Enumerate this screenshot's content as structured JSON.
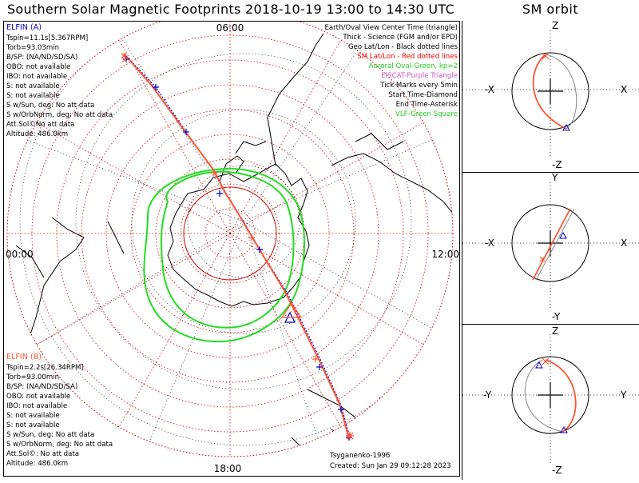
{
  "title": "Southern Solar Magnetic Footprints 2018-10-19 13:00 to 14:30 UTC",
  "sm_title": "SM orbit",
  "time_labels": {
    "top": "06:00",
    "left": "00:00",
    "right": "12:00",
    "bottom": "18:00"
  },
  "satellite_a": {
    "name": "ELFIN (A)",
    "color": "#0000cc",
    "lines": [
      "Tspin=11.1s[5.367RPM]",
      "Torb=93.03min",
      "B/SP: (NA/ND/SD/SA)",
      "OBO: not available",
      "IBO: not available",
      "S: not available",
      "S: not available",
      "S w/Sun, deg: No att data",
      "S w/OrbNorm, deg: No att data",
      "Att.Sol©No att data",
      "Altitude: 486.0km"
    ]
  },
  "satellite_b": {
    "name": "ELFIN (B)",
    "color": "#ff5533",
    "lines": [
      "Tspin=2.2s[26.34RPM]",
      "Torb=93.00min",
      "B/SP: (NA/ND/SD/SA)",
      "OBO: not available",
      "IBO: not available",
      "S: not available",
      "S: not available",
      "S w/Sun, deg: No att data",
      "S w/OrbNorm, deg: No att data",
      "Att.Sol©: No att data",
      "Altitude: 486.0km"
    ]
  },
  "legend": [
    {
      "text": "Earth/Oval View Center Time (triangle)",
      "color": "#000000"
    },
    {
      "text": "Thick - Science (FGM and/or EPD)",
      "color": "#000000"
    },
    {
      "text": "Geo Lat/Lon - Black dotted lines",
      "color": "#000000"
    },
    {
      "text": "SM Lat/Lon - Red dotted lines",
      "color": "#ff0000"
    },
    {
      "text": "Auroral Oval-Green, kp=2",
      "color": "#22cc22"
    },
    {
      "text": "EISCAT-Purple Triangle",
      "color": "#cc55cc"
    },
    {
      "text": "Tick Marks every 5min",
      "color": "#000000"
    },
    {
      "text": "Start Time-Diamond",
      "color": "#000000"
    },
    {
      "text": "End Time-Asterisk",
      "color": "#000000"
    },
    {
      "text": "VLF-Green Square",
      "color": "#22cc22"
    }
  ],
  "credits": {
    "model": "Tsyganenko-1996",
    "created": "Created: Sun Jan 29 09:12:28 2023"
  },
  "sm_panels": [
    {
      "top": "Z",
      "bottom": "-Z",
      "left": "-X",
      "right": "X"
    },
    {
      "top": "Y",
      "bottom": "-Y",
      "left": "-X",
      "right": "X"
    },
    {
      "top": "Z",
      "bottom": "-Z",
      "left": "-Y",
      "right": "Y"
    }
  ],
  "colors": {
    "track": "#ff5533",
    "grid_sm": "#cc0000",
    "grid_geo": "#000000",
    "oval": "#22dd22",
    "tick": "#0000cc"
  }
}
